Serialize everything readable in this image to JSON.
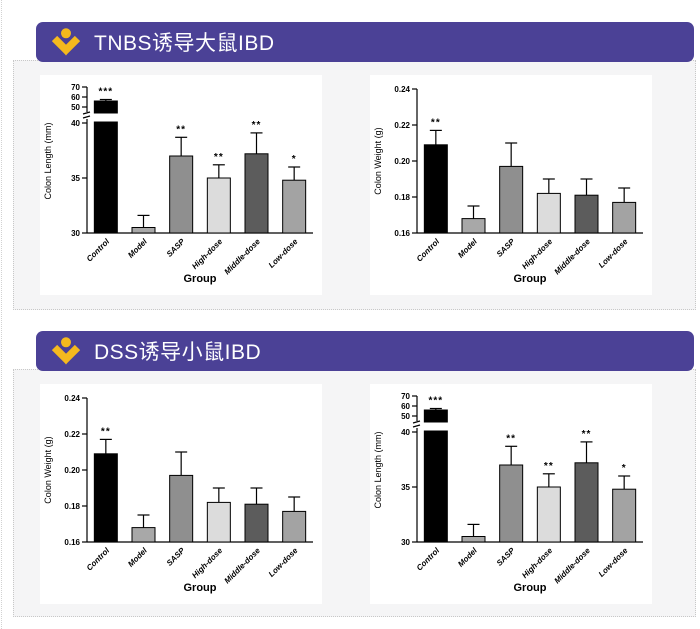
{
  "page": {
    "background_color": "#ffffff",
    "panel_background_color": "#f5f5f6",
    "dotted_border_color": "#c8c8c8"
  },
  "panels": [
    {
      "header": {
        "title": "TNBS诱导大鼠IBD",
        "icon": "figure-logo-icon",
        "background_color": "#4b4196",
        "title_color": "#ffffff",
        "icon_color": "#f5b91e"
      },
      "chart_indexes": [
        0,
        1
      ]
    },
    {
      "header": {
        "title": "DSS诱导小鼠IBD",
        "icon": "figure-logo-icon",
        "background_color": "#4b4196",
        "title_color": "#ffffff",
        "icon_color": "#f5b91e"
      },
      "chart_indexes": [
        2,
        3
      ]
    }
  ],
  "chart_data": [
    {
      "type": "bar",
      "panel": "TNBS诱导大鼠IBD",
      "title": "",
      "ylabel": "Colon Length (mm)",
      "xlabel": "Group",
      "categories": [
        "Control",
        "Model",
        "SASP",
        "High-dose",
        "Middle-dose",
        "Low-dose"
      ],
      "values": [
        56,
        30.5,
        37,
        35,
        37.2,
        34.8
      ],
      "errors": [
        1.5,
        1.1,
        1.7,
        1.2,
        1.9,
        1.2
      ],
      "significance": [
        "***",
        "",
        "**",
        "**",
        "**",
        "*"
      ],
      "bar_colors": [
        "#000000",
        "#a8a8a8",
        "#8f8f8f",
        "#dcdcdc",
        "#5c5c5c",
        "#a3a3a3"
      ],
      "grid": false,
      "error_caps": true,
      "axis": {
        "broken": true,
        "lower_range": [
          30,
          40
        ],
        "upper_range": [
          50,
          70
        ],
        "lower_ticks": [
          "30",
          "35",
          "40"
        ],
        "upper_ticks": [
          "50",
          "60",
          "70"
        ]
      }
    },
    {
      "type": "bar",
      "panel": "TNBS诱导大鼠IBD",
      "title": "",
      "ylabel": "Colon Weight (g)",
      "xlabel": "Group",
      "categories": [
        "Control",
        "Model",
        "SASP",
        "High-dose",
        "Middle-dose",
        "Low-dose"
      ],
      "values": [
        0.209,
        0.168,
        0.197,
        0.182,
        0.181,
        0.177
      ],
      "errors": [
        0.008,
        0.007,
        0.013,
        0.008,
        0.009,
        0.008
      ],
      "significance": [
        "**",
        "",
        "",
        "",
        "",
        ""
      ],
      "bar_colors": [
        "#000000",
        "#a8a8a8",
        "#8f8f8f",
        "#dcdcdc",
        "#5c5c5c",
        "#a3a3a3"
      ],
      "grid": false,
      "error_caps": true,
      "axis": {
        "broken": false,
        "range": [
          0.16,
          0.24
        ],
        "ticks": [
          "0.16",
          "0.18",
          "0.20",
          "0.22",
          "0.24"
        ]
      }
    },
    {
      "type": "bar",
      "panel": "DSS诱导小鼠IBD",
      "title": "",
      "ylabel": "Colon Weight (g)",
      "xlabel": "Group",
      "categories": [
        "Control",
        "Model",
        "SASP",
        "High-dose",
        "Middle-dose",
        "Low-dose"
      ],
      "values": [
        0.209,
        0.168,
        0.197,
        0.182,
        0.181,
        0.177
      ],
      "errors": [
        0.008,
        0.007,
        0.013,
        0.008,
        0.009,
        0.008
      ],
      "significance": [
        "**",
        "",
        "",
        "",
        "",
        ""
      ],
      "bar_colors": [
        "#000000",
        "#a8a8a8",
        "#8f8f8f",
        "#dcdcdc",
        "#5c5c5c",
        "#a3a3a3"
      ],
      "grid": false,
      "error_caps": true,
      "axis": {
        "broken": false,
        "range": [
          0.16,
          0.24
        ],
        "ticks": [
          "0.16",
          "0.18",
          "0.20",
          "0.22",
          "0.24"
        ]
      }
    },
    {
      "type": "bar",
      "panel": "DSS诱导小鼠IBD",
      "title": "",
      "ylabel": "Colon Length (mm)",
      "xlabel": "Group",
      "categories": [
        "Control",
        "Model",
        "SASP",
        "High-dose",
        "Middle-dose",
        "Low-dose"
      ],
      "values": [
        56,
        30.5,
        37,
        35,
        37.2,
        34.8
      ],
      "errors": [
        1.5,
        1.1,
        1.7,
        1.2,
        1.9,
        1.2
      ],
      "significance": [
        "***",
        "",
        "**",
        "**",
        "**",
        "*"
      ],
      "bar_colors": [
        "#000000",
        "#a8a8a8",
        "#8f8f8f",
        "#dcdcdc",
        "#5c5c5c",
        "#a3a3a3"
      ],
      "grid": false,
      "error_caps": true,
      "axis": {
        "broken": true,
        "lower_range": [
          30,
          40
        ],
        "upper_range": [
          50,
          70
        ],
        "lower_ticks": [
          "30",
          "35",
          "40"
        ],
        "upper_ticks": [
          "50",
          "60",
          "70"
        ]
      }
    }
  ]
}
